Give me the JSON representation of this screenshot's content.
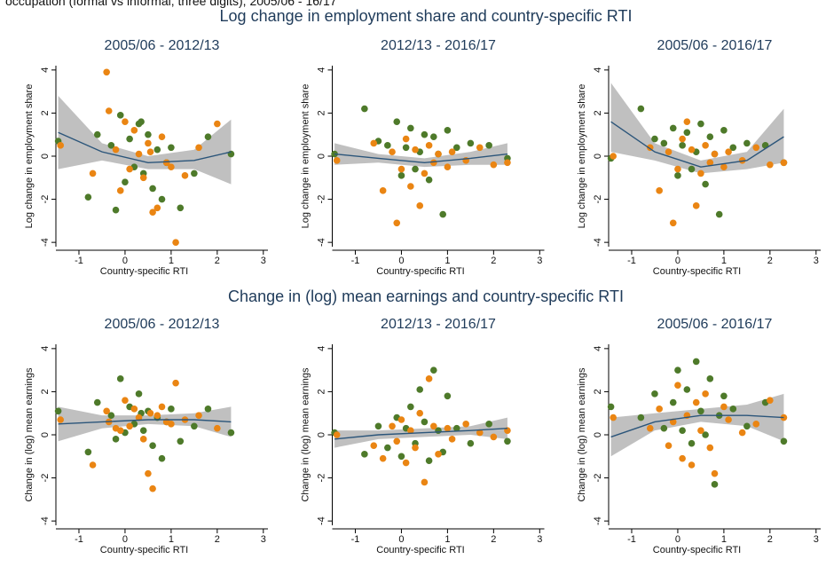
{
  "caption": "occupation (formal vs informal, three digits), 2005/06 - 16/17",
  "section_titles": [
    "Log change in employment share and country-specific RTI",
    "Change in (log) mean earnings and country-specific RTI"
  ],
  "chart_data": [
    {
      "type": "scatter",
      "title": "2005/06 - 2012/13",
      "xlabel": "Country-specific RTI",
      "ylabel": "Log change in employment share",
      "xlim": [
        -1.5,
        3.1
      ],
      "ylim": [
        -4.2,
        4.2
      ],
      "xticks": [
        -1,
        0,
        1,
        2,
        3
      ],
      "yticks": [
        -4,
        -2,
        0,
        2,
        4
      ],
      "series": [
        {
          "color": "#4e7a2a",
          "x": [
            -1.45,
            -0.8,
            -0.6,
            -0.3,
            -0.1,
            0,
            0.1,
            0.2,
            0.3,
            0.4,
            0.5,
            0.6,
            0.7,
            0.8,
            0.9,
            1.0,
            1.2,
            1.5,
            1.8,
            2.3,
            -0.2,
            0.35
          ],
          "values": [
            0.7,
            -1.9,
            1.0,
            0.5,
            1.9,
            -1.2,
            0.8,
            -0.5,
            1.5,
            -0.8,
            1.0,
            -1.5,
            0.3,
            -2.0,
            -0.3,
            0.4,
            -2.4,
            -0.8,
            0.9,
            0.1,
            -2.5,
            1.6
          ]
        },
        {
          "color": "#ea8513",
          "x": [
            -1.4,
            -0.7,
            -0.4,
            -0.35,
            -0.2,
            0,
            0.1,
            0.2,
            0.3,
            0.4,
            0.5,
            0.6,
            0.7,
            0.8,
            1.0,
            1.1,
            1.3,
            1.6,
            2.0,
            -0.1,
            0.55,
            0.9
          ],
          "values": [
            0.5,
            -0.8,
            3.9,
            2.1,
            0.3,
            1.6,
            -0.6,
            1.2,
            0.1,
            -1.0,
            0.6,
            -2.6,
            -2.4,
            0.9,
            -0.5,
            -4.0,
            -0.9,
            0.4,
            1.5,
            -1.6,
            0.2,
            -0.3
          ]
        }
      ],
      "fit": {
        "color": "#2b557a",
        "band_color": "#b9b9b9",
        "x": [
          -1.45,
          -0.5,
          0.5,
          1.5,
          2.3
        ],
        "values": [
          1.1,
          0.2,
          -0.3,
          -0.2,
          0.2
        ],
        "lower": [
          -0.6,
          -0.2,
          -0.6,
          -0.6,
          -1.3
        ],
        "upper": [
          2.8,
          0.6,
          0,
          0.3,
          1.7
        ]
      }
    },
    {
      "type": "scatter",
      "title": "2012/13 - 2016/17",
      "xlabel": "Country-specific RTI",
      "ylabel": "Log change in employment share",
      "xlim": [
        -1.5,
        3.1
      ],
      "ylim": [
        -4.2,
        4.2
      ],
      "xticks": [
        -1,
        0,
        1,
        2,
        3
      ],
      "yticks": [
        -4,
        -2,
        0,
        2,
        4
      ],
      "series": [
        {
          "color": "#4e7a2a",
          "x": [
            -1.45,
            -0.8,
            -0.5,
            -0.3,
            -0.1,
            0,
            0.1,
            0.2,
            0.3,
            0.4,
            0.5,
            0.6,
            0.7,
            0.8,
            0.9,
            1.0,
            1.2,
            1.5,
            1.9,
            2.3
          ],
          "values": [
            0.1,
            2.2,
            0.7,
            0.5,
            1.6,
            -0.9,
            0.4,
            1.3,
            -0.6,
            0.2,
            1.0,
            -1.1,
            0.9,
            0.1,
            -2.7,
            1.2,
            0.4,
            0.6,
            0.5,
            -0.1
          ]
        },
        {
          "color": "#ea8513",
          "x": [
            -1.4,
            -0.6,
            -0.4,
            -0.2,
            -0.1,
            0,
            0.1,
            0.2,
            0.3,
            0.4,
            0.5,
            0.6,
            0.7,
            0.8,
            1.0,
            1.1,
            1.4,
            1.7,
            2.0,
            2.3
          ],
          "values": [
            -0.2,
            0.6,
            -1.6,
            0.2,
            -3.1,
            -0.6,
            0.8,
            -1.4,
            0.3,
            -2.3,
            -0.8,
            0.5,
            -0.3,
            0.1,
            -0.5,
            0.2,
            -0.2,
            0.4,
            -0.4,
            -0.3
          ]
        }
      ],
      "fit": {
        "color": "#2b557a",
        "band_color": "#b9b9b9",
        "x": [
          -1.45,
          -0.5,
          0.5,
          1.5,
          2.3
        ],
        "values": [
          0.1,
          -0.1,
          -0.3,
          -0.1,
          0.1
        ],
        "lower": [
          -0.4,
          -0.3,
          -0.5,
          -0.4,
          -0.4
        ],
        "upper": [
          0.6,
          0.1,
          -0.1,
          0.2,
          0.6
        ]
      }
    },
    {
      "type": "scatter",
      "title": "2005/06 - 2016/17",
      "xlabel": "Country-specific RTI",
      "ylabel": "Log change in employment share",
      "xlim": [
        -1.5,
        3.1
      ],
      "ylim": [
        -4.2,
        4.2
      ],
      "xticks": [
        -1,
        0,
        1,
        2,
        3
      ],
      "yticks": [
        -4,
        -2,
        0,
        2,
        4
      ],
      "series": [
        {
          "color": "#4e7a2a",
          "x": [
            -1.45,
            -0.8,
            -0.5,
            -0.3,
            -0.1,
            0,
            0.1,
            0.2,
            0.3,
            0.4,
            0.5,
            0.6,
            0.7,
            0.8,
            0.9,
            1.0,
            1.2,
            1.5,
            1.9,
            2.3
          ],
          "values": [
            -0.1,
            2.2,
            0.8,
            0.6,
            1.3,
            -0.9,
            0.5,
            1.1,
            -0.6,
            0.2,
            1.5,
            -1.3,
            0.9,
            0.1,
            -2.7,
            1.2,
            0.4,
            0.6,
            0.5,
            -0.3
          ]
        },
        {
          "color": "#ea8513",
          "x": [
            -1.4,
            -0.6,
            -0.4,
            -0.2,
            -0.1,
            0,
            0.1,
            0.2,
            0.3,
            0.4,
            0.5,
            0.6,
            0.7,
            0.8,
            1.0,
            1.1,
            1.4,
            1.7,
            2.0,
            2.3
          ],
          "values": [
            0.0,
            0.4,
            -1.6,
            0.2,
            -3.1,
            -0.6,
            0.8,
            1.6,
            0.3,
            -2.3,
            -0.8,
            0.5,
            -0.3,
            0.1,
            -0.5,
            0.2,
            -0.2,
            0.4,
            -0.4,
            -0.3
          ]
        }
      ],
      "fit": {
        "color": "#2b557a",
        "band_color": "#b9b9b9",
        "x": [
          -1.45,
          -0.5,
          0.5,
          1.5,
          2.3
        ],
        "values": [
          1.6,
          0.2,
          -0.5,
          -0.2,
          0.9
        ],
        "lower": [
          0.2,
          -0.2,
          -0.8,
          -0.6,
          -0.3
        ],
        "upper": [
          3.4,
          0.6,
          -0.2,
          0.2,
          2.2
        ]
      }
    },
    {
      "type": "scatter",
      "title": "2005/06 - 2012/13",
      "xlabel": "Country-specific RTI",
      "ylabel": "Change in (log) mean earnings",
      "xlim": [
        -1.5,
        3.1
      ],
      "ylim": [
        -4.2,
        4.2
      ],
      "xticks": [
        -1,
        0,
        1,
        2,
        3
      ],
      "yticks": [
        -4,
        -2,
        0,
        2,
        4
      ],
      "series": [
        {
          "color": "#4e7a2a",
          "x": [
            -1.45,
            -0.8,
            -0.6,
            -0.3,
            -0.1,
            0,
            0.1,
            0.2,
            0.3,
            0.4,
            0.5,
            0.6,
            0.7,
            0.8,
            0.9,
            1.0,
            1.2,
            1.5,
            1.8,
            2.3,
            -0.2,
            0.35
          ],
          "values": [
            1.1,
            -0.8,
            1.5,
            0.9,
            2.6,
            0.1,
            1.3,
            0.5,
            1.9,
            0.2,
            1.1,
            -0.5,
            0.8,
            -1.1,
            0.6,
            1.2,
            -0.3,
            0.4,
            1.2,
            0.1,
            -0.2,
            1.0
          ]
        },
        {
          "color": "#ea8513",
          "x": [
            -1.4,
            -0.7,
            -0.4,
            -0.35,
            -0.2,
            0,
            0.1,
            0.2,
            0.3,
            0.4,
            0.5,
            0.6,
            0.7,
            0.8,
            1.0,
            1.1,
            1.3,
            1.6,
            2.0,
            -0.1,
            0.55,
            0.9
          ],
          "values": [
            0.7,
            -1.4,
            1.1,
            0.6,
            0.3,
            1.6,
            0.4,
            1.2,
            0.8,
            -0.2,
            -1.8,
            -2.5,
            0.9,
            1.3,
            0.5,
            2.4,
            0.7,
            0.9,
            0.3,
            0.2,
            1.0,
            0.6
          ]
        }
      ],
      "fit": {
        "color": "#2b557a",
        "band_color": "#b9b9b9",
        "x": [
          -1.45,
          -0.5,
          0.5,
          1.5,
          2.3
        ],
        "values": [
          0.5,
          0.6,
          0.7,
          0.7,
          0.6
        ],
        "lower": [
          -0.3,
          0.3,
          0.5,
          0.4,
          -0.1
        ],
        "upper": [
          1.3,
          0.9,
          0.9,
          1.0,
          1.3
        ]
      }
    },
    {
      "type": "scatter",
      "title": "2012/13 - 2016/17",
      "xlabel": "Country-specific RTI",
      "ylabel": "Change in (log) mean earnings",
      "xlim": [
        -1.5,
        3.1
      ],
      "ylim": [
        -4.2,
        4.2
      ],
      "xticks": [
        -1,
        0,
        1,
        2,
        3
      ],
      "yticks": [
        -4,
        -2,
        0,
        2,
        4
      ],
      "series": [
        {
          "color": "#4e7a2a",
          "x": [
            -1.45,
            -0.8,
            -0.5,
            -0.3,
            -0.1,
            0,
            0.1,
            0.2,
            0.3,
            0.4,
            0.5,
            0.6,
            0.7,
            0.8,
            0.9,
            1.0,
            1.2,
            1.5,
            1.9,
            2.3
          ],
          "values": [
            0.1,
            -0.9,
            0.4,
            -0.6,
            0.8,
            -1.0,
            0.3,
            1.3,
            -0.4,
            2.1,
            0.6,
            -1.2,
            3.0,
            0.2,
            -0.8,
            1.8,
            0.3,
            -0.4,
            0.5,
            -0.3
          ]
        },
        {
          "color": "#ea8513",
          "x": [
            -1.4,
            -0.6,
            -0.4,
            -0.2,
            -0.1,
            0,
            0.1,
            0.2,
            0.3,
            0.4,
            0.5,
            0.6,
            0.7,
            0.8,
            1.0,
            1.1,
            1.4,
            1.7,
            2.0,
            2.3
          ],
          "values": [
            0.0,
            -0.5,
            -1.1,
            0.4,
            -0.3,
            0.7,
            -1.3,
            0.2,
            -0.6,
            1.0,
            -2.2,
            2.6,
            0.4,
            -0.9,
            0.3,
            -0.2,
            0.5,
            0.1,
            -0.1,
            0.2
          ]
        }
      ],
      "fit": {
        "color": "#2b557a",
        "band_color": "#b9b9b9",
        "x": [
          -1.45,
          -0.5,
          0.5,
          1.5,
          2.3
        ],
        "values": [
          -0.2,
          0,
          0.1,
          0.2,
          0.3
        ],
        "lower": [
          -0.6,
          -0.2,
          -0.1,
          0,
          -0.2
        ],
        "upper": [
          0.2,
          0.2,
          0.3,
          0.4,
          0.8
        ]
      }
    },
    {
      "type": "scatter",
      "title": "2005/06 - 2016/17",
      "xlabel": "Country-specific RTI",
      "ylabel": "Change in (log) mean earnings",
      "xlim": [
        -1.5,
        3.1
      ],
      "ylim": [
        -4.2,
        4.2
      ],
      "xticks": [
        -1,
        0,
        1,
        2,
        3
      ],
      "yticks": [
        -4,
        -2,
        0,
        2,
        4
      ],
      "series": [
        {
          "color": "#4e7a2a",
          "x": [
            -1.45,
            -0.8,
            -0.5,
            -0.3,
            -0.1,
            0,
            0.1,
            0.2,
            0.3,
            0.4,
            0.5,
            0.6,
            0.7,
            0.8,
            0.9,
            1.0,
            1.2,
            1.5,
            1.9,
            2.3
          ],
          "values": [
            1.3,
            0.8,
            1.9,
            0.3,
            1.5,
            3.0,
            0.2,
            2.1,
            -0.4,
            3.4,
            1.1,
            0.0,
            2.6,
            -2.3,
            0.9,
            1.8,
            1.2,
            0.4,
            1.5,
            -0.3
          ]
        },
        {
          "color": "#ea8513",
          "x": [
            -1.4,
            -0.6,
            -0.4,
            -0.2,
            -0.1,
            0,
            0.1,
            0.2,
            0.3,
            0.4,
            0.5,
            0.6,
            0.7,
            0.8,
            1.0,
            1.1,
            1.4,
            1.7,
            2.0,
            2.3
          ],
          "values": [
            0.8,
            0.3,
            1.2,
            -0.5,
            0.6,
            2.3,
            -1.1,
            0.9,
            -1.4,
            1.5,
            0.2,
            1.9,
            -0.6,
            -1.8,
            1.3,
            0.7,
            0.1,
            0.5,
            1.6,
            0.8
          ]
        }
      ],
      "fit": {
        "color": "#2b557a",
        "band_color": "#b9b9b9",
        "x": [
          -1.45,
          -0.5,
          0.5,
          1.5,
          2.3
        ],
        "values": [
          -0.1,
          0.6,
          0.9,
          0.9,
          0.8
        ],
        "lower": [
          -1.0,
          0.2,
          0.6,
          0.4,
          -0.3
        ],
        "upper": [
          0.8,
          1.0,
          1.2,
          1.4,
          1.9
        ]
      }
    }
  ]
}
